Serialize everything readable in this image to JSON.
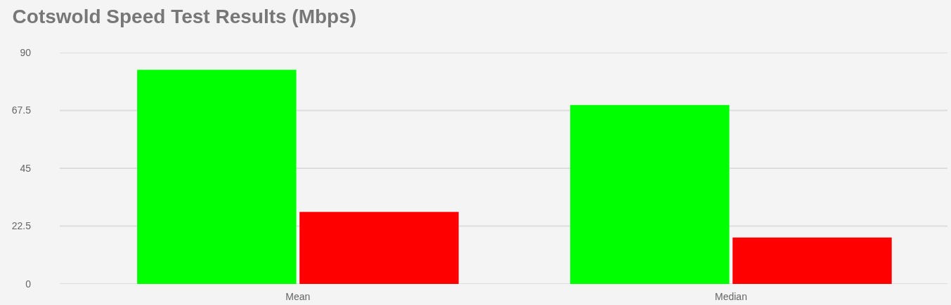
{
  "chart_data": {
    "type": "bar",
    "title": "Cotswold Speed Test Results (Mbps)",
    "categories": [
      "Mean",
      "Median"
    ],
    "series": [
      {
        "color": "#00ff00",
        "values": [
          83.3,
          69.6
        ]
      },
      {
        "color": "#ff0000",
        "values": [
          28.0,
          18.1
        ]
      }
    ],
    "ylim": [
      0,
      90
    ],
    "yticks": [
      0,
      22.5,
      45,
      67.5,
      90
    ],
    "grid": "y"
  }
}
